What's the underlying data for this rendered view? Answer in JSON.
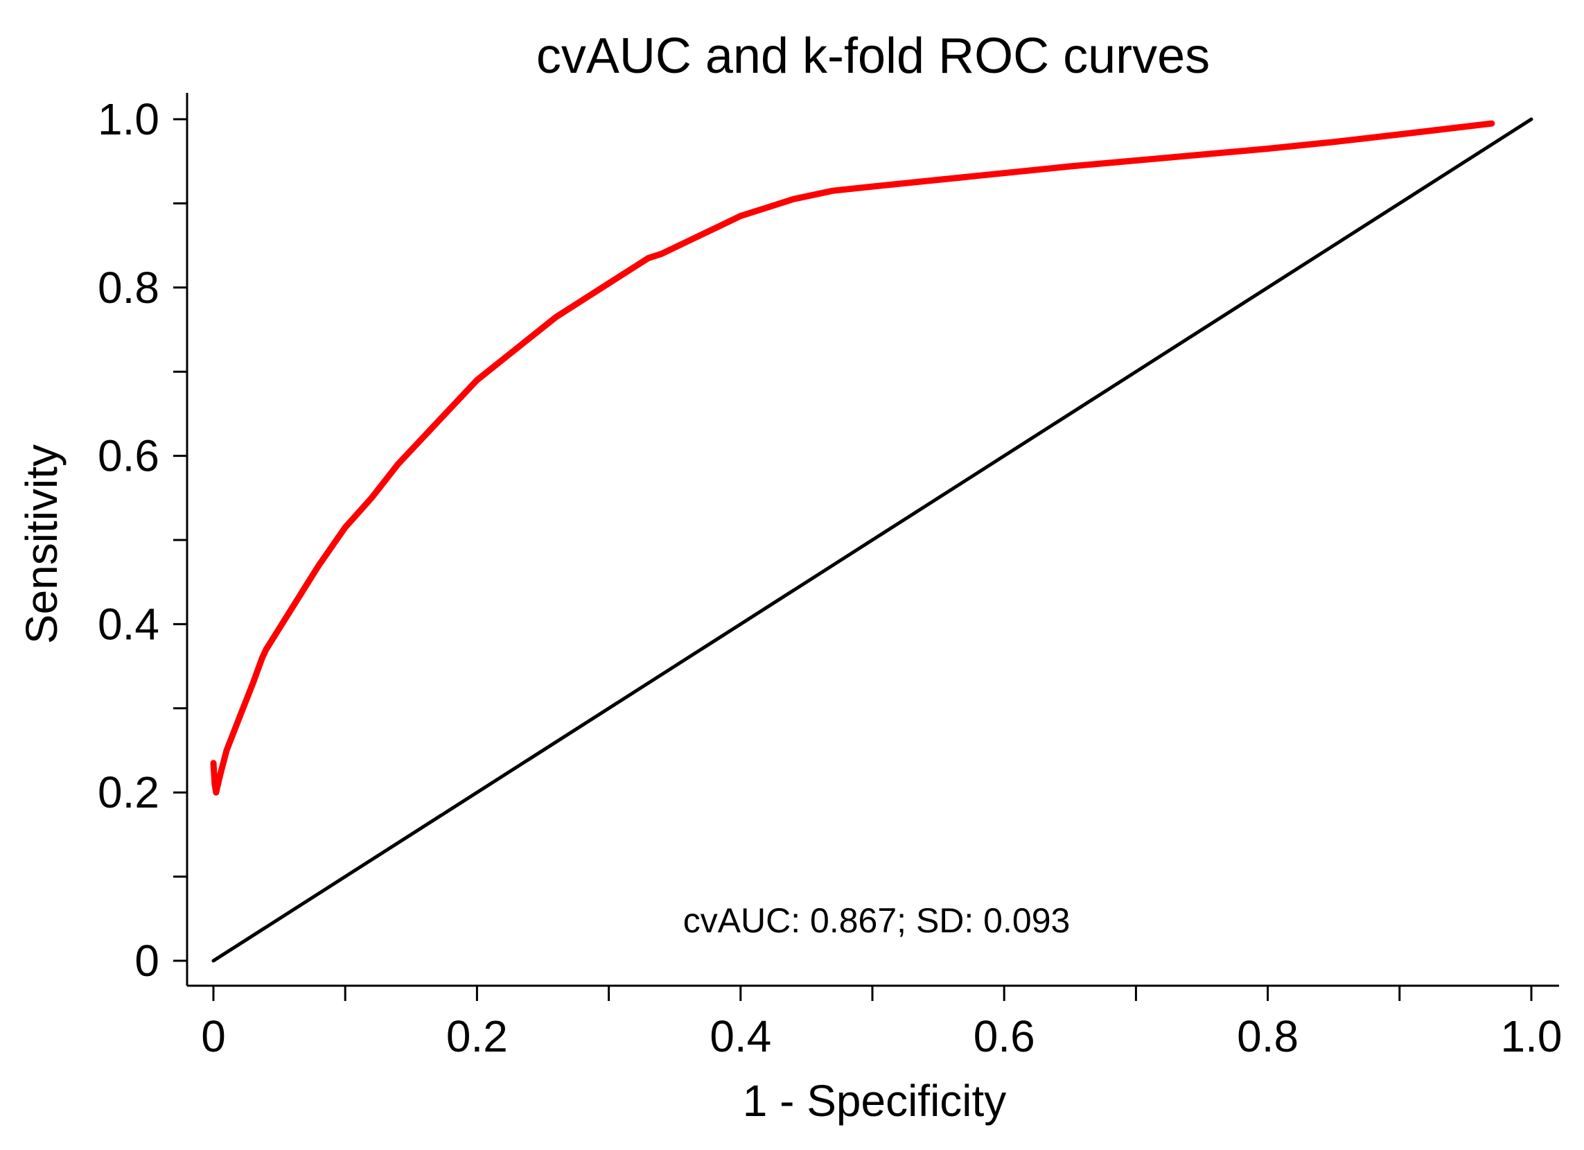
{
  "chart_data": {
    "type": "line",
    "title": "cvAUC and k-fold ROC curves",
    "xlabel": "1 - Specificity",
    "ylabel": "Sensitivity",
    "xlim": [
      0,
      1
    ],
    "ylim": [
      0,
      1
    ],
    "x_ticks": [
      0,
      0.1,
      0.2,
      0.3,
      0.4,
      0.5,
      0.6,
      0.7,
      0.8,
      0.9,
      1.0
    ],
    "y_ticks": [
      0,
      0.1,
      0.2,
      0.3,
      0.4,
      0.5,
      0.6,
      0.7,
      0.8,
      0.9,
      1.0
    ],
    "x_tick_labels": [
      {
        "value": 0,
        "label": "0"
      },
      {
        "value": 0.2,
        "label": "0.2"
      },
      {
        "value": 0.4,
        "label": "0.4"
      },
      {
        "value": 0.6,
        "label": "0.6"
      },
      {
        "value": 0.8,
        "label": "0.8"
      },
      {
        "value": 1.0,
        "label": "1.0"
      }
    ],
    "y_tick_labels": [
      {
        "value": 0,
        "label": "0"
      },
      {
        "value": 0.2,
        "label": "0.2"
      },
      {
        "value": 0.4,
        "label": "0.4"
      },
      {
        "value": 0.6,
        "label": "0.6"
      },
      {
        "value": 0.8,
        "label": "0.8"
      },
      {
        "value": 1.0,
        "label": "1.0"
      }
    ],
    "annotation": "cvAUC: 0.867; SD: 0.093",
    "series": [
      {
        "name": "ROC curve",
        "color": "#ff0000",
        "x": [
          0,
          0.001,
          0.002,
          0.002,
          0.005,
          0.01,
          0.02,
          0.03,
          0.037,
          0.04,
          0.05,
          0.06,
          0.07,
          0.08,
          0.1,
          0.12,
          0.14,
          0.17,
          0.2,
          0.22,
          0.24,
          0.26,
          0.28,
          0.3,
          0.32,
          0.33,
          0.34,
          0.36,
          0.38,
          0.4,
          0.42,
          0.44,
          0.47,
          0.5,
          0.55,
          0.6,
          0.65,
          0.7,
          0.75,
          0.8,
          0.85,
          0.9,
          0.97
        ],
        "y": [
          0.235,
          0.21,
          0.2,
          0.2,
          0.22,
          0.25,
          0.29,
          0.33,
          0.36,
          0.37,
          0.395,
          0.42,
          0.445,
          0.47,
          0.515,
          0.55,
          0.59,
          0.64,
          0.69,
          0.715,
          0.74,
          0.765,
          0.785,
          0.805,
          0.825,
          0.835,
          0.84,
          0.855,
          0.87,
          0.885,
          0.895,
          0.905,
          0.915,
          0.92,
          0.928,
          0.936,
          0.944,
          0.951,
          0.958,
          0.965,
          0.973,
          0.982,
          0.995
        ]
      },
      {
        "name": "Reference line",
        "color": "#000000",
        "x": [
          0,
          1
        ],
        "y": [
          0,
          1
        ]
      }
    ]
  }
}
